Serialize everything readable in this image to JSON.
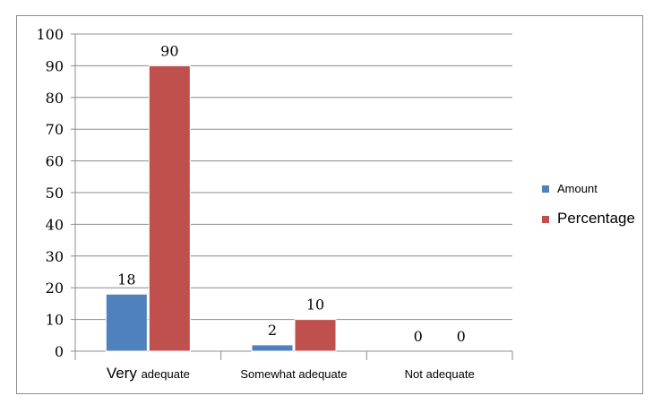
{
  "chart_data": {
    "type": "bar",
    "title": "",
    "xlabel": "",
    "ylabel": "",
    "ylim": [
      0,
      100
    ],
    "yticks": [
      0,
      10,
      20,
      30,
      40,
      50,
      60,
      70,
      80,
      90,
      100
    ],
    "categories": [
      "Very adequate",
      "Somewhat adequate",
      "Not adequate"
    ],
    "series": [
      {
        "name": "Amount",
        "values": [
          18,
          2,
          0
        ],
        "color": "#4f81bd"
      },
      {
        "name": "Percentage",
        "values": [
          90,
          10,
          0
        ],
        "color": "#c0504d"
      }
    ],
    "grid": true,
    "legend_position": "right"
  }
}
